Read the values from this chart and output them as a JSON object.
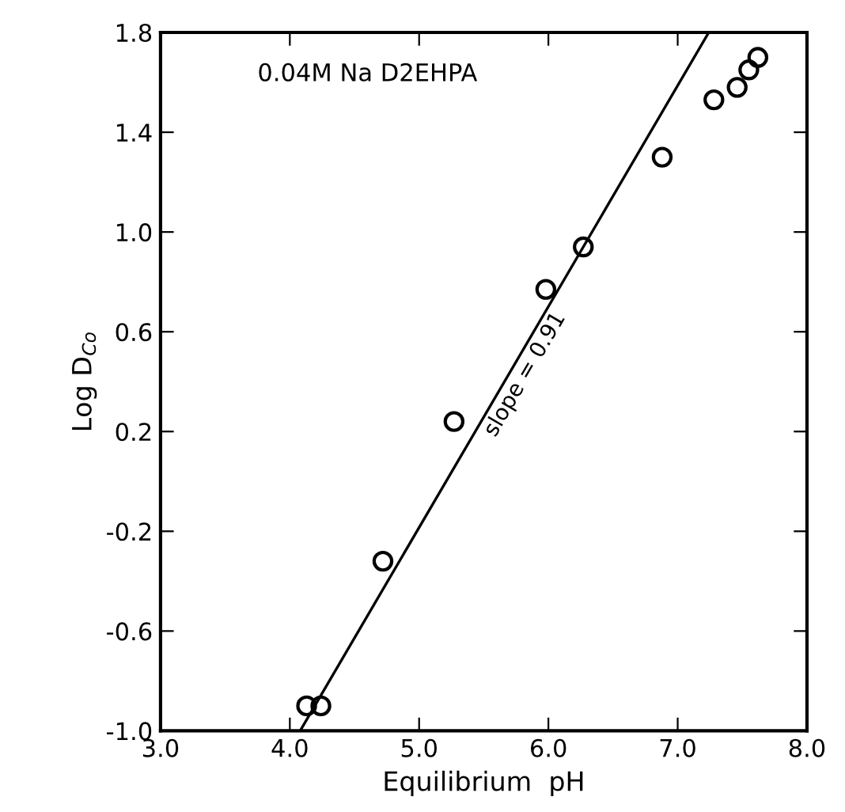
{
  "chart_data": {
    "type": "scatter",
    "xlabel": "Equilibrium  pH",
    "ylabel": "Log D$_{Co}$",
    "x": [
      4.13,
      4.24,
      4.72,
      5.27,
      5.98,
      6.27,
      6.88,
      7.28,
      7.46,
      7.55,
      7.62
    ],
    "series": [
      {
        "type": "scatter",
        "color": "#000000",
        "marker": "circle",
        "values": [
          -0.9,
          -0.9,
          -0.32,
          0.24,
          0.77,
          0.94,
          1.3,
          1.53,
          1.58,
          1.65,
          1.7
        ]
      },
      {
        "type": "line",
        "color": "#000000",
        "marker": "none",
        "line_style": "solid",
        "x": [
          4.08,
          7.24
        ],
        "values": [
          -1.0,
          1.8
        ]
      }
    ],
    "annotations": [
      "0.04M Na D2EHPA",
      {
        "text": "slope = 0.91",
        "x": 5.75,
        "y": 0.45
      }
    ],
    "xlim": [
      3.0,
      8.0
    ],
    "ylim": [
      -1.0,
      1.8
    ],
    "xticks": [
      {
        "value": 3,
        "label": "3.0"
      },
      {
        "value": 4,
        "label": "4.0"
      },
      {
        "value": 5,
        "label": "5.0"
      },
      {
        "value": 6,
        "label": "6.0"
      },
      {
        "value": 7,
        "label": "7.0"
      },
      {
        "value": 8,
        "label": "8.0"
      }
    ],
    "yticks": [
      {
        "value": -1,
        "label": "-1.0"
      },
      -0.6,
      -0.2,
      0.2,
      0.6,
      {
        "value": 1,
        "label": "1.0"
      },
      1.4,
      1.8
    ],
    "grid": false,
    "legend": false
  }
}
